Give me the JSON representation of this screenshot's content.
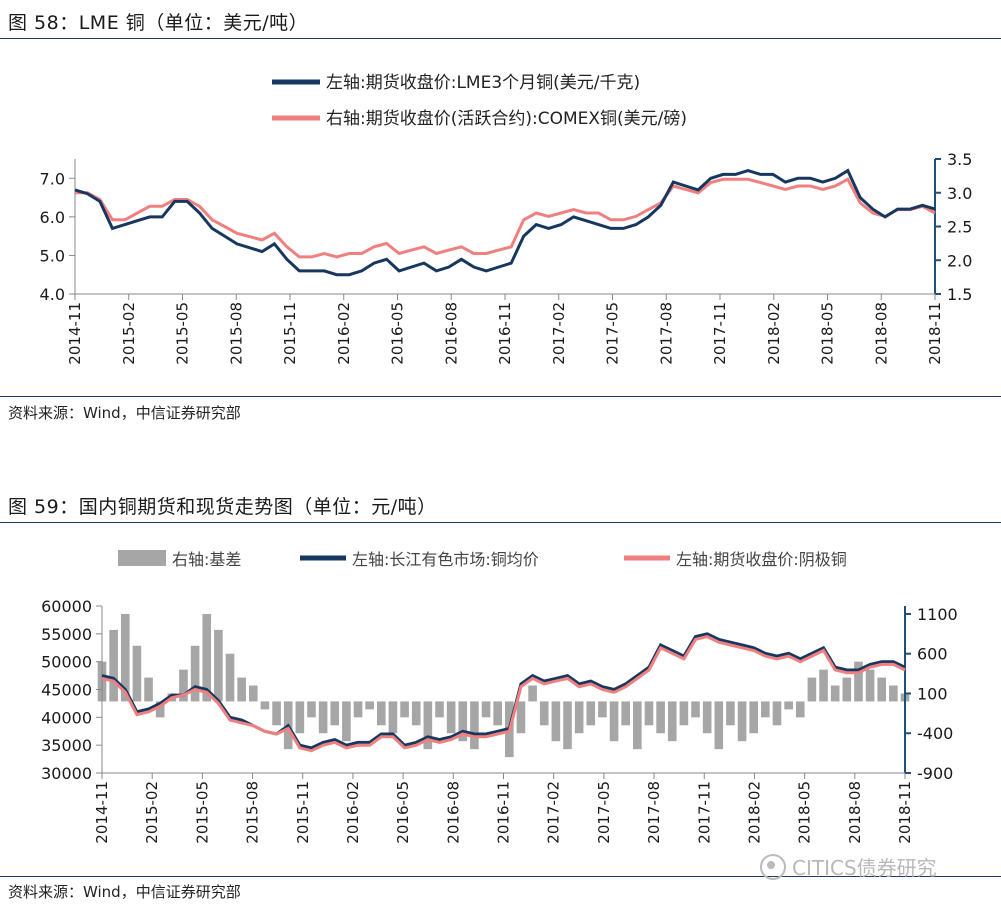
{
  "figure1": {
    "title": "图 58：LME 铜（单位：美元/吨）",
    "source": "资料来源：Wind，中信证券研究部"
  },
  "figure2": {
    "title": "图 59：国内铜期货和现货走势图（单位：元/吨）",
    "source": "资料来源：Wind，中信证券研究部"
  },
  "watermark": "CITICS债券研究",
  "colors": {
    "navy": "#17375e",
    "pink": "#f08080",
    "gray": "#a6a6a6",
    "axis": "#1f4e79"
  },
  "chart_data": [
    {
      "type": "line",
      "x_ticks": [
        "2014-11",
        "2015-02",
        "2015-05",
        "2015-08",
        "2015-11",
        "2016-02",
        "2016-05",
        "2016-08",
        "2016-11",
        "2017-02",
        "2017-05",
        "2017-08",
        "2017-11",
        "2018-02",
        "2018-05",
        "2018-08",
        "2018-11"
      ],
      "y_left": {
        "ticks": [
          "4.0",
          "5.0",
          "6.0",
          "7.0"
        ],
        "lim": [
          4.0,
          7.5
        ]
      },
      "y_right": {
        "ticks": [
          "1.5",
          "2.0",
          "2.5",
          "3.0",
          "3.5"
        ],
        "lim": [
          1.5,
          3.5
        ]
      },
      "series": [
        {
          "name": "左轴:期货收盘价:LME3个月铜(美元/千克)",
          "axis": "left",
          "values": [
            6.7,
            6.6,
            6.4,
            5.7,
            5.8,
            5.9,
            6.0,
            6.0,
            6.4,
            6.4,
            6.1,
            5.7,
            5.5,
            5.3,
            5.2,
            5.1,
            5.3,
            4.9,
            4.6,
            4.6,
            4.6,
            4.5,
            4.5,
            4.6,
            4.8,
            4.9,
            4.6,
            4.7,
            4.8,
            4.6,
            4.7,
            4.9,
            4.7,
            4.6,
            4.7,
            4.8,
            5.5,
            5.8,
            5.7,
            5.8,
            6.0,
            5.9,
            5.8,
            5.7,
            5.7,
            5.8,
            6.0,
            6.3,
            6.9,
            6.8,
            6.7,
            7.0,
            7.1,
            7.1,
            7.2,
            7.1,
            7.1,
            6.9,
            7.0,
            7.0,
            6.9,
            7.0,
            7.2,
            6.5,
            6.2,
            6.0,
            6.2,
            6.2,
            6.3,
            6.2
          ]
        },
        {
          "name": "右轴:期货收盘价(活跃合约):COMEX铜(美元/磅)",
          "axis": "right",
          "values": [
            3.0,
            3.0,
            2.9,
            2.6,
            2.6,
            2.7,
            2.8,
            2.8,
            2.9,
            2.9,
            2.8,
            2.6,
            2.5,
            2.4,
            2.35,
            2.3,
            2.4,
            2.2,
            2.05,
            2.05,
            2.1,
            2.05,
            2.1,
            2.1,
            2.2,
            2.25,
            2.1,
            2.15,
            2.2,
            2.1,
            2.15,
            2.2,
            2.1,
            2.1,
            2.15,
            2.2,
            2.6,
            2.7,
            2.65,
            2.7,
            2.75,
            2.7,
            2.7,
            2.6,
            2.6,
            2.65,
            2.75,
            2.85,
            3.1,
            3.05,
            3.0,
            3.15,
            3.2,
            3.2,
            3.2,
            3.15,
            3.1,
            3.05,
            3.1,
            3.1,
            3.05,
            3.1,
            3.2,
            2.85,
            2.7,
            2.65,
            2.75,
            2.75,
            2.8,
            2.7
          ]
        }
      ]
    },
    {
      "type": "line",
      "x_ticks": [
        "2014-11",
        "2015-02",
        "2015-05",
        "2015-08",
        "2015-11",
        "2016-02",
        "2016-05",
        "2016-08",
        "2016-11",
        "2017-02",
        "2017-05",
        "2017-08",
        "2017-11",
        "2018-02",
        "2018-05",
        "2018-08",
        "2018-11"
      ],
      "y_left": {
        "ticks": [
          "30000",
          "35000",
          "40000",
          "45000",
          "50000",
          "55000",
          "60000"
        ],
        "lim": [
          30000,
          60000
        ]
      },
      "y_right": {
        "ticks": [
          "-900",
          "-400",
          "100",
          "600",
          "1100"
        ],
        "lim": [
          -900,
          1200
        ]
      },
      "series": [
        {
          "name": "右轴:基差",
          "axis": "right",
          "kind": "bar",
          "values": [
            500,
            900,
            1100,
            700,
            300,
            -200,
            100,
            400,
            700,
            1100,
            900,
            600,
            300,
            200,
            -100,
            -300,
            -600,
            -400,
            -200,
            -400,
            -300,
            -500,
            -200,
            -100,
            -300,
            -400,
            -200,
            -300,
            -600,
            -200,
            -400,
            -500,
            -600,
            -200,
            -300,
            -700,
            -400,
            200,
            -300,
            -500,
            -600,
            -400,
            -300,
            -200,
            -500,
            -300,
            -600,
            -300,
            -400,
            -500,
            -300,
            -200,
            -400,
            -600,
            -300,
            -500,
            -400,
            -200,
            -300,
            -100,
            -200,
            300,
            400,
            200,
            300,
            500,
            400,
            300,
            200,
            100
          ]
        },
        {
          "name": "左轴:长江有色市场:铜均价",
          "axis": "left",
          "values": [
            47500,
            47000,
            45000,
            41000,
            41500,
            42500,
            44000,
            44000,
            45500,
            45000,
            43000,
            40000,
            39500,
            38500,
            37500,
            37000,
            38500,
            35000,
            34500,
            35500,
            36000,
            35000,
            35500,
            35500,
            37000,
            37000,
            35000,
            35500,
            36500,
            36000,
            36500,
            37500,
            37000,
            37000,
            37500,
            38000,
            46000,
            47500,
            46500,
            47000,
            47500,
            46000,
            46500,
            45500,
            45000,
            46000,
            47500,
            49000,
            53000,
            52000,
            51000,
            54500,
            55000,
            54000,
            53500,
            53000,
            52500,
            51500,
            51000,
            51500,
            50500,
            51500,
            52500,
            49000,
            48500,
            48500,
            49500,
            50000,
            50000,
            49000
          ]
        },
        {
          "name": "左轴:期货收盘价:阴极铜",
          "axis": "left",
          "values": [
            47000,
            46500,
            44500,
            40500,
            41000,
            42000,
            43500,
            44000,
            45000,
            44500,
            42500,
            39500,
            39000,
            38500,
            37500,
            37000,
            38000,
            34500,
            34000,
            35000,
            35500,
            34500,
            35000,
            35000,
            36500,
            36500,
            34500,
            35000,
            36000,
            35500,
            36000,
            37000,
            36500,
            36500,
            37000,
            37500,
            45500,
            47000,
            46000,
            46500,
            47000,
            45500,
            46000,
            45000,
            44500,
            45500,
            47000,
            48500,
            52500,
            51500,
            50500,
            54000,
            54500,
            53500,
            53000,
            52500,
            52000,
            51000,
            50500,
            51000,
            50000,
            51000,
            52000,
            48500,
            48000,
            48000,
            49000,
            49500,
            49500,
            48500
          ]
        }
      ]
    }
  ]
}
